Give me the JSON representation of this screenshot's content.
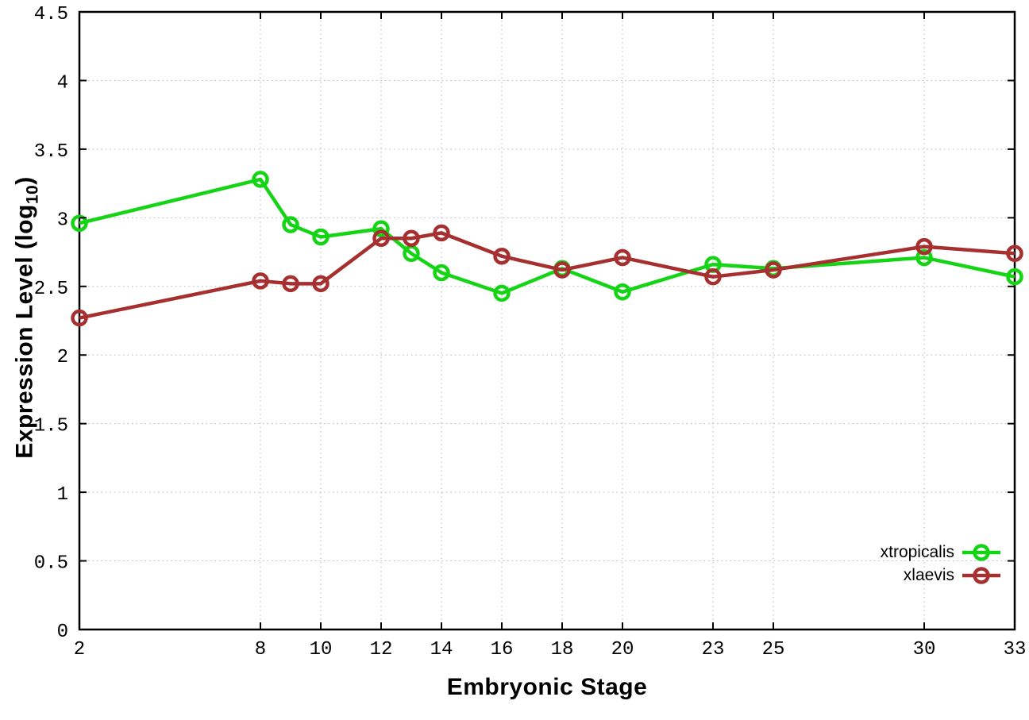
{
  "figure": {
    "background": "#ffffff",
    "xlabel": "Embryonic Stage",
    "ylabel_parts": {
      "main": "Expression Level (log",
      "sub": "10",
      "suffix": ")"
    }
  },
  "chart_data": {
    "type": "line",
    "title": "",
    "xlabel": "Embryonic Stage",
    "ylabel": "Expression Level (log10)",
    "x": [
      2,
      8,
      9,
      10,
      12,
      13,
      14,
      16,
      18,
      20,
      23,
      25,
      30,
      33
    ],
    "series": [
      {
        "name": "xtropicalis",
        "color": "#15d415",
        "marker": "open-circle",
        "values": [
          2.96,
          3.28,
          2.95,
          2.86,
          2.92,
          2.74,
          2.6,
          2.45,
          2.63,
          2.46,
          2.66,
          2.63,
          2.71,
          2.57
        ]
      },
      {
        "name": "xlaevis",
        "color": "#a63030",
        "marker": "open-circle",
        "values": [
          2.27,
          2.54,
          2.52,
          2.52,
          2.85,
          2.85,
          2.89,
          2.72,
          2.62,
          2.71,
          2.57,
          2.62,
          2.79,
          2.74
        ]
      }
    ],
    "xticks": [
      2,
      8,
      10,
      12,
      14,
      16,
      18,
      20,
      23,
      25,
      30,
      33
    ],
    "yticks": [
      0,
      0.5,
      1,
      1.5,
      2,
      2.5,
      3,
      3.5,
      4,
      4.5
    ],
    "xlim": [
      2,
      33
    ],
    "ylim": [
      0,
      4.5
    ],
    "grid": true,
    "grid_color": "#b4b4c4",
    "axis_color": "#000000",
    "legend_position": "bottom-right"
  }
}
